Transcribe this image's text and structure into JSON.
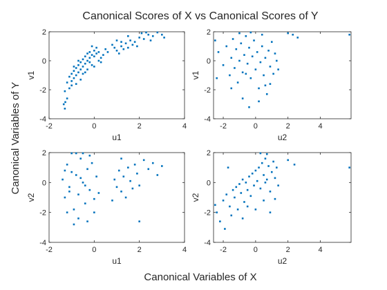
{
  "figure": {
    "title": "Canonical Scores of X vs Canonical Scores of Y",
    "xlabel": "Canonical Variables of X",
    "ylabel": "Canonical Variables of Y",
    "marker_color": "#0072BD"
  },
  "chart_data": [
    {
      "type": "scatter",
      "xlabel": "u1",
      "ylabel": "v1",
      "xlim": [
        -2,
        4
      ],
      "ylim": [
        -4,
        2
      ],
      "xticks": [
        -2,
        0,
        2,
        4
      ],
      "yticks": [
        -4,
        -2,
        0,
        2
      ],
      "points": [
        [
          -1.3,
          -3.3
        ],
        [
          -1.35,
          -3.0
        ],
        [
          -1.28,
          -2.85
        ],
        [
          -1.2,
          -2.6
        ],
        [
          -1.3,
          -2.1
        ],
        [
          -1.1,
          -1.9
        ],
        [
          -1.0,
          -1.7
        ],
        [
          -1.2,
          -1.5
        ],
        [
          -1.0,
          -1.4
        ],
        [
          -0.9,
          -1.2
        ],
        [
          -1.1,
          -1.1
        ],
        [
          -0.8,
          -1.0
        ],
        [
          -1.0,
          -0.9
        ],
        [
          -0.7,
          -0.8
        ],
        [
          -0.9,
          -0.7
        ],
        [
          -0.6,
          -0.6
        ],
        [
          -0.8,
          -0.5
        ],
        [
          -0.5,
          -0.4
        ],
        [
          -0.7,
          -0.3
        ],
        [
          -0.4,
          -0.2
        ],
        [
          -0.6,
          -0.1
        ],
        [
          -0.3,
          0.0
        ],
        [
          -0.5,
          0.1
        ],
        [
          -0.2,
          0.2
        ],
        [
          -0.4,
          0.3
        ],
        [
          -0.1,
          0.4
        ],
        [
          -0.3,
          0.5
        ],
        [
          0.0,
          0.3
        ],
        [
          -0.2,
          0.6
        ],
        [
          0.1,
          0.5
        ],
        [
          0.0,
          0.7
        ],
        [
          0.2,
          0.6
        ],
        [
          -0.1,
          -0.3
        ],
        [
          -0.3,
          -0.6
        ],
        [
          -0.5,
          -0.9
        ],
        [
          -0.2,
          -0.1
        ],
        [
          -0.6,
          -1.3
        ],
        [
          -0.8,
          -1.6
        ],
        [
          -0.9,
          -0.4
        ],
        [
          -0.7,
          0.0
        ],
        [
          -0.4,
          -0.8
        ],
        [
          0.3,
          0.2
        ],
        [
          0.4,
          0.4
        ],
        [
          0.2,
          0.0
        ],
        [
          0.5,
          0.8
        ],
        [
          0.1,
          0.9
        ],
        [
          -0.1,
          1.0
        ],
        [
          0.3,
          -0.1
        ],
        [
          0.6,
          0.6
        ],
        [
          0.0,
          -0.4
        ],
        [
          1.0,
          0.7
        ],
        [
          1.2,
          1.0
        ],
        [
          1.4,
          1.2
        ],
        [
          1.1,
          0.5
        ],
        [
          1.6,
          1.4
        ],
        [
          1.3,
          0.8
        ],
        [
          1.8,
          1.3
        ],
        [
          2.0,
          1.6
        ],
        [
          1.9,
          1.0
        ],
        [
          2.2,
          1.5
        ],
        [
          1.5,
          1.7
        ],
        [
          2.4,
          1.8
        ],
        [
          1.7,
          1.1
        ],
        [
          2.1,
          1.9
        ],
        [
          2.6,
          1.7
        ],
        [
          2.8,
          2.0
        ],
        [
          3.0,
          1.8
        ],
        [
          3.1,
          1.6
        ],
        [
          2.5,
          1.4
        ],
        [
          1.2,
          1.3
        ],
        [
          0.9,
          0.9
        ],
        [
          1.5,
          0.9
        ],
        [
          2.3,
          2.0
        ],
        [
          0.8,
          1.1
        ],
        [
          1.0,
          1.4
        ]
      ]
    },
    {
      "type": "scatter",
      "xlabel": "u2",
      "ylabel": "v1",
      "xlim": [
        -2.6,
        5.9
      ],
      "ylim": [
        -4,
        2
      ],
      "xticks": [
        -2,
        0,
        2,
        4
      ],
      "yticks": [
        -4,
        -2,
        0,
        2
      ],
      "points": [
        [
          -2.5,
          1.4
        ],
        [
          -2.3,
          0.6
        ],
        [
          -2.0,
          -0.3
        ],
        [
          -1.8,
          1.0
        ],
        [
          -1.6,
          -1.0
        ],
        [
          -1.5,
          0.2
        ],
        [
          -1.4,
          1.5
        ],
        [
          -1.3,
          -0.5
        ],
        [
          -1.2,
          0.8
        ],
        [
          -1.1,
          -1.5
        ],
        [
          -1.0,
          0.0
        ],
        [
          -0.9,
          1.2
        ],
        [
          -0.8,
          -0.8
        ],
        [
          -0.7,
          0.4
        ],
        [
          -0.6,
          1.7
        ],
        [
          -0.5,
          -0.2
        ],
        [
          -0.4,
          0.9
        ],
        [
          -0.3,
          -1.2
        ],
        [
          -0.2,
          0.3
        ],
        [
          -0.1,
          1.4
        ],
        [
          0.0,
          -0.6
        ],
        [
          0.1,
          0.6
        ],
        [
          0.2,
          -1.9
        ],
        [
          0.3,
          -0.1
        ],
        [
          0.4,
          1.0
        ],
        [
          0.5,
          -1.0
        ],
        [
          0.6,
          0.2
        ],
        [
          0.7,
          -2.3
        ],
        [
          0.8,
          0.7
        ],
        [
          0.9,
          -0.4
        ],
        [
          1.0,
          1.3
        ],
        [
          1.1,
          -0.9
        ],
        [
          1.2,
          0.5
        ],
        [
          -0.4,
          -3.2
        ],
        [
          -0.8,
          -2.6
        ],
        [
          0.2,
          -2.8
        ],
        [
          0.6,
          -1.7
        ],
        [
          -1.5,
          -1.9
        ],
        [
          -2.4,
          -1.2
        ],
        [
          1.3,
          0.0
        ],
        [
          1.4,
          -0.6
        ],
        [
          2.0,
          1.9
        ],
        [
          2.3,
          1.8
        ],
        [
          2.6,
          1.6
        ],
        [
          5.8,
          1.8
        ],
        [
          -0.3,
          2.0
        ],
        [
          0.4,
          1.8
        ],
        [
          -1.0,
          1.9
        ],
        [
          0.9,
          -1.6
        ],
        [
          -0.6,
          -0.9
        ]
      ]
    },
    {
      "type": "scatter",
      "xlabel": "u1",
      "ylabel": "v2",
      "xlim": [
        -2,
        4
      ],
      "ylim": [
        -4,
        2
      ],
      "xticks": [
        -2,
        0,
        2,
        4
      ],
      "yticks": [
        -4,
        -2,
        0,
        2
      ],
      "points": [
        [
          -1.4,
          0.2
        ],
        [
          -1.3,
          -1.0
        ],
        [
          -1.2,
          1.2
        ],
        [
          -1.1,
          -0.3
        ],
        [
          -1.0,
          0.7
        ],
        [
          -0.9,
          -1.8
        ],
        [
          -0.8,
          0.5
        ],
        [
          -0.7,
          -0.8
        ],
        [
          -0.6,
          1.6
        ],
        [
          -0.5,
          0.0
        ],
        [
          -0.4,
          -1.4
        ],
        [
          -0.3,
          0.9
        ],
        [
          -0.2,
          -0.5
        ],
        [
          -0.1,
          1.3
        ],
        [
          0.0,
          -1.1
        ],
        [
          0.1,
          0.4
        ],
        [
          -1.0,
          2.3
        ],
        [
          -0.8,
          2.5
        ],
        [
          -1.2,
          -2.0
        ],
        [
          -0.9,
          -2.8
        ],
        [
          -0.7,
          -2.4
        ],
        [
          -0.3,
          -2.6
        ],
        [
          -0.5,
          2.0
        ],
        [
          -0.2,
          1.8
        ],
        [
          0.0,
          -2.0
        ],
        [
          -1.3,
          0.8
        ],
        [
          -1.1,
          -0.6
        ],
        [
          -0.6,
          0.3
        ],
        [
          -0.4,
          -0.2
        ],
        [
          0.2,
          -0.7
        ],
        [
          0.9,
          0.2
        ],
        [
          1.0,
          -0.3
        ],
        [
          1.1,
          0.8
        ],
        [
          1.2,
          -0.6
        ],
        [
          1.3,
          0.4
        ],
        [
          1.4,
          -1.0
        ],
        [
          1.5,
          1.0
        ],
        [
          1.6,
          0.1
        ],
        [
          1.7,
          -0.4
        ],
        [
          1.8,
          1.2
        ],
        [
          1.9,
          0.6
        ],
        [
          2.0,
          -0.2
        ],
        [
          2.2,
          1.5
        ],
        [
          2.4,
          0.9
        ],
        [
          2.6,
          1.3
        ],
        [
          2.8,
          0.5
        ],
        [
          3.0,
          1.1
        ],
        [
          2.0,
          -2.6
        ],
        [
          1.2,
          1.6
        ],
        [
          0.8,
          -1.2
        ]
      ]
    },
    {
      "type": "scatter",
      "xlabel": "u2",
      "ylabel": "v2",
      "xlim": [
        -2.6,
        5.9
      ],
      "ylim": [
        -4,
        2
      ],
      "xticks": [
        -2,
        0,
        2,
        4
      ],
      "yticks": [
        -4,
        -2,
        0,
        2
      ],
      "points": [
        [
          -2.5,
          -1.5
        ],
        [
          -2.4,
          -2.0
        ],
        [
          -2.2,
          -2.6
        ],
        [
          -2.0,
          -1.2
        ],
        [
          -1.9,
          -3.1
        ],
        [
          -1.8,
          -0.8
        ],
        [
          -1.6,
          -1.6
        ],
        [
          -1.5,
          -2.2
        ],
        [
          -1.4,
          -0.5
        ],
        [
          -1.3,
          -1.0
        ],
        [
          -1.2,
          -0.3
        ],
        [
          -1.1,
          -1.8
        ],
        [
          -1.0,
          -0.1
        ],
        [
          -0.9,
          -0.7
        ],
        [
          -0.8,
          0.2
        ],
        [
          -0.7,
          -1.3
        ],
        [
          -0.6,
          0.0
        ],
        [
          -0.5,
          -0.5
        ],
        [
          -0.4,
          0.4
        ],
        [
          -0.3,
          -0.9
        ],
        [
          -0.2,
          0.6
        ],
        [
          -0.1,
          -0.2
        ],
        [
          0.0,
          0.8
        ],
        [
          0.1,
          0.1
        ],
        [
          0.2,
          1.0
        ],
        [
          0.3,
          -0.4
        ],
        [
          0.4,
          1.3
        ],
        [
          0.5,
          0.5
        ],
        [
          0.6,
          1.6
        ],
        [
          0.7,
          0.2
        ],
        [
          0.8,
          1.1
        ],
        [
          0.9,
          -0.6
        ],
        [
          1.0,
          0.7
        ],
        [
          1.1,
          1.4
        ],
        [
          1.2,
          0.3
        ],
        [
          1.3,
          1.0
        ],
        [
          1.4,
          -0.2
        ],
        [
          0.5,
          -1.2
        ],
        [
          0.0,
          -1.8
        ],
        [
          -0.5,
          -1.6
        ],
        [
          0.9,
          -2.0
        ],
        [
          1.2,
          -1.1
        ],
        [
          0.3,
          2.0
        ],
        [
          0.7,
          1.9
        ],
        [
          -1.7,
          1.0
        ],
        [
          2.0,
          1.5
        ],
        [
          2.4,
          1.2
        ],
        [
          5.8,
          1.0
        ],
        [
          -0.8,
          -2.4
        ],
        [
          0.6,
          0.0
        ]
      ]
    }
  ]
}
